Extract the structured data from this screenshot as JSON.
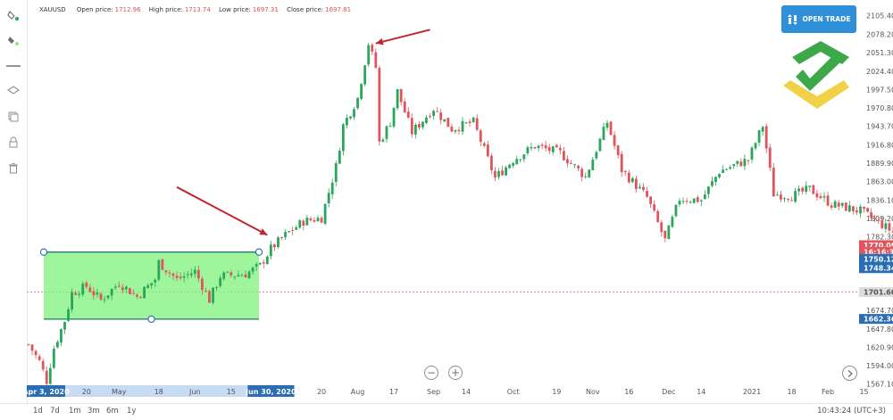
{
  "header": {
    "symbol": "XAUUSD",
    "open_label": "Open price:",
    "open_value": "1712.96",
    "high_label": "High price:",
    "high_value": "1713.74",
    "low_label": "Low price:",
    "low_value": "1697.31",
    "close_label": "Close price:",
    "close_value": "1697.81"
  },
  "open_trade_label": "OPEN TRADE",
  "timeframes": [
    "1d",
    "7d",
    "1m",
    "3m",
    "6m",
    "1y"
  ],
  "clock": "10:43:24 (UTC+3)",
  "colors": {
    "up": "#2aa55a",
    "down": "#e0545d",
    "accent": "#2f8fd8",
    "range_fill": "#7ef27a",
    "arrow": "#c0282d"
  },
  "icons": [
    "paint-bucket-icon",
    "paint-bucket-icon",
    "horizontal-line-icon",
    "layers-icon",
    "copy-icon",
    "lock-icon",
    "trash-icon"
  ],
  "chart_data": {
    "type": "candlestick",
    "symbol": "XAUUSD",
    "y_ticks": [
      "2105.40",
      "2078.20",
      "2051.30",
      "2024.40",
      "1997.50",
      "1970.80",
      "1943.70",
      "1916.80",
      "1889.90",
      "1863.00",
      "1836.10",
      "1809.20",
      "1782.30",
      "1701.60",
      "1674.70",
      "1647.80",
      "1620.90",
      "1594.00",
      "1567.10"
    ],
    "x_ticks": [
      "20",
      "May",
      "18",
      "Jun",
      "15",
      "20",
      "Aug",
      "17",
      "Sep",
      "14",
      "Oct",
      "19",
      "Nov",
      "16",
      "Dec",
      "14",
      "2021",
      "18",
      "Feb",
      "15"
    ],
    "x_highlight_start": "Apr 3, 2020",
    "x_highlight_end": "Jun 30, 2020",
    "y_range": [
      1555,
      2118
    ],
    "price_badges": [
      {
        "label": "1770.09",
        "value": 1770.09,
        "color": "#e0545d"
      },
      {
        "label": "16:16:35",
        "value": 1760.2,
        "color": "#e0545d"
      },
      {
        "label": "1750.12",
        "value": 1750.12,
        "color": "#2a6db3"
      },
      {
        "label": "1748.34",
        "value": 1736.5,
        "color": "#2a6db3"
      },
      {
        "label": "1701.60",
        "value": 1701.6,
        "color": "#dddddd"
      },
      {
        "label": "1662.36",
        "value": 1662.36,
        "color": "#2a6db3"
      }
    ],
    "dashed_level": 1701.6,
    "range_box": {
      "start": "Apr 13, 2020",
      "end": "Jun 30, 2020",
      "high": 1760,
      "low": 1662
    },
    "waypoints": [
      [
        "2020-03-27",
        1625
      ],
      [
        "2020-04-01",
        1600
      ],
      [
        "2020-04-03",
        1572
      ],
      [
        "2020-04-07",
        1620
      ],
      [
        "2020-04-10",
        1660
      ],
      [
        "2020-04-14",
        1700
      ],
      [
        "2020-04-20",
        1710
      ],
      [
        "2020-04-24",
        1690
      ],
      [
        "2020-05-01",
        1715
      ],
      [
        "2020-05-08",
        1695
      ],
      [
        "2020-05-15",
        1720
      ],
      [
        "2020-05-18",
        1745
      ],
      [
        "2020-05-25",
        1720
      ],
      [
        "2020-06-01",
        1732
      ],
      [
        "2020-06-05",
        1690
      ],
      [
        "2020-06-10",
        1725
      ],
      [
        "2020-06-19",
        1728
      ],
      [
        "2020-06-25",
        1740
      ],
      [
        "2020-06-30",
        1765
      ],
      [
        "2020-07-06",
        1785
      ],
      [
        "2020-07-13",
        1805
      ],
      [
        "2020-07-20",
        1810
      ],
      [
        "2020-07-24",
        1885
      ],
      [
        "2020-07-28",
        1945
      ],
      [
        "2020-08-03",
        1985
      ],
      [
        "2020-08-06",
        2065
      ],
      [
        "2020-08-10",
        2030
      ],
      [
        "2020-08-11",
        1920
      ],
      [
        "2020-08-14",
        1950
      ],
      [
        "2020-08-18",
        1995
      ],
      [
        "2020-08-24",
        1935
      ],
      [
        "2020-09-01",
        1970
      ],
      [
        "2020-09-08",
        1940
      ],
      [
        "2020-09-16",
        1950
      ],
      [
        "2020-09-24",
        1868
      ],
      [
        "2020-10-01",
        1895
      ],
      [
        "2020-10-09",
        1915
      ],
      [
        "2020-10-20",
        1905
      ],
      [
        "2020-10-29",
        1870
      ],
      [
        "2020-11-06",
        1950
      ],
      [
        "2020-11-12",
        1880
      ],
      [
        "2020-11-23",
        1840
      ],
      [
        "2020-11-30",
        1777
      ],
      [
        "2020-12-04",
        1838
      ],
      [
        "2020-12-14",
        1836
      ],
      [
        "2020-12-21",
        1878
      ],
      [
        "2020-12-31",
        1895
      ],
      [
        "2021-01-06",
        1945
      ],
      [
        "2021-01-11",
        1845
      ],
      [
        "2021-01-18",
        1842
      ],
      [
        "2021-01-25",
        1852
      ],
      [
        "2021-02-02",
        1830
      ],
      [
        "2021-02-12",
        1820
      ],
      [
        "2021-02-22",
        1800
      ],
      [
        "2021-03-01",
        1782
      ],
      [
        "2021-03-05",
        1770
      ]
    ],
    "arrows": [
      {
        "from": [
          "2020-05-25",
          1855
        ],
        "to": [
          "2020-06-28",
          1785
        ]
      },
      {
        "from": [
          "2020-08-30",
          2085
        ],
        "to": [
          "2020-08-10",
          2065
        ]
      }
    ]
  }
}
